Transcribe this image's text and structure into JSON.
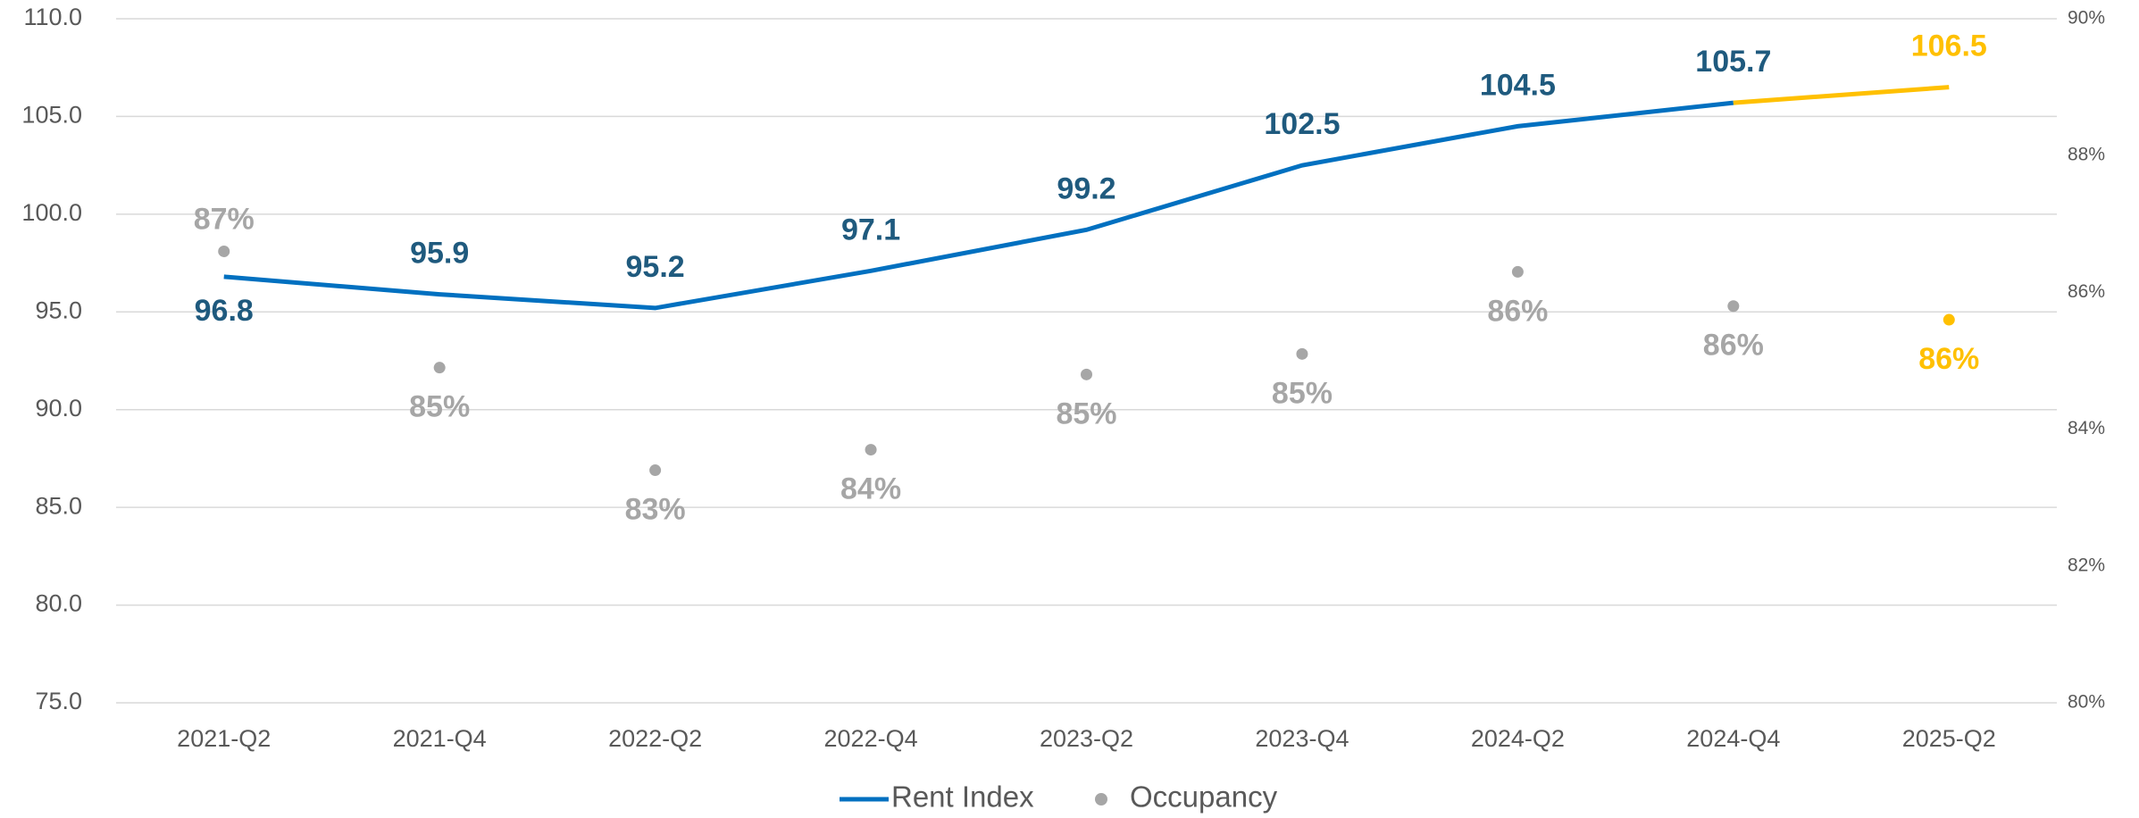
{
  "chart_data": {
    "type": "line",
    "categories": [
      "2021-Q2",
      "2021-Q4",
      "2022-Q2",
      "2022-Q4",
      "2023-Q2",
      "2023-Q4",
      "2024-Q2",
      "2024-Q4",
      "2025-Q2"
    ],
    "series": [
      {
        "name": "Rent Index",
        "color": "#0070c0",
        "label_color": "#1f5a7e",
        "values": [
          96.8,
          95.9,
          95.2,
          97.1,
          99.2,
          102.5,
          104.5,
          105.7,
          106.5
        ]
      },
      {
        "name": "Occupancy",
        "color": "#a6a6a6",
        "label_color": "#a6a6a6",
        "axis": "y2",
        "values": [
          86.6,
          84.9,
          83.4,
          83.7,
          84.8,
          85.1,
          86.3,
          85.8,
          85.6
        ],
        "value_labels": [
          "87%",
          "85%",
          "83%",
          "84%",
          "85%",
          "85%",
          "86%",
          "86%",
          "86%"
        ]
      }
    ],
    "highlight_color": "#ffc000",
    "ylim": [
      75,
      110
    ],
    "yticks": [
      {
        "value": 75,
        "label": "75.0"
      },
      {
        "value": 80,
        "label": "80.0"
      },
      {
        "value": 85,
        "label": "85.0"
      },
      {
        "value": 90,
        "label": "90.0"
      },
      {
        "value": 95,
        "label": "95.0"
      },
      {
        "value": 100,
        "label": "100.0"
      },
      {
        "value": 105,
        "label": "105.0"
      },
      {
        "value": 110,
        "label": "110.0"
      }
    ],
    "y2lim": [
      80,
      90
    ],
    "y2ticks": [
      {
        "value": 80,
        "label": "80%"
      },
      {
        "value": 82,
        "label": "82%"
      },
      {
        "value": 84,
        "label": "84%"
      },
      {
        "value": 86,
        "label": "86%"
      },
      {
        "value": 88,
        "label": "88%"
      },
      {
        "value": 90,
        "label": "90%"
      }
    ],
    "grid": true,
    "legend": "bottom"
  }
}
